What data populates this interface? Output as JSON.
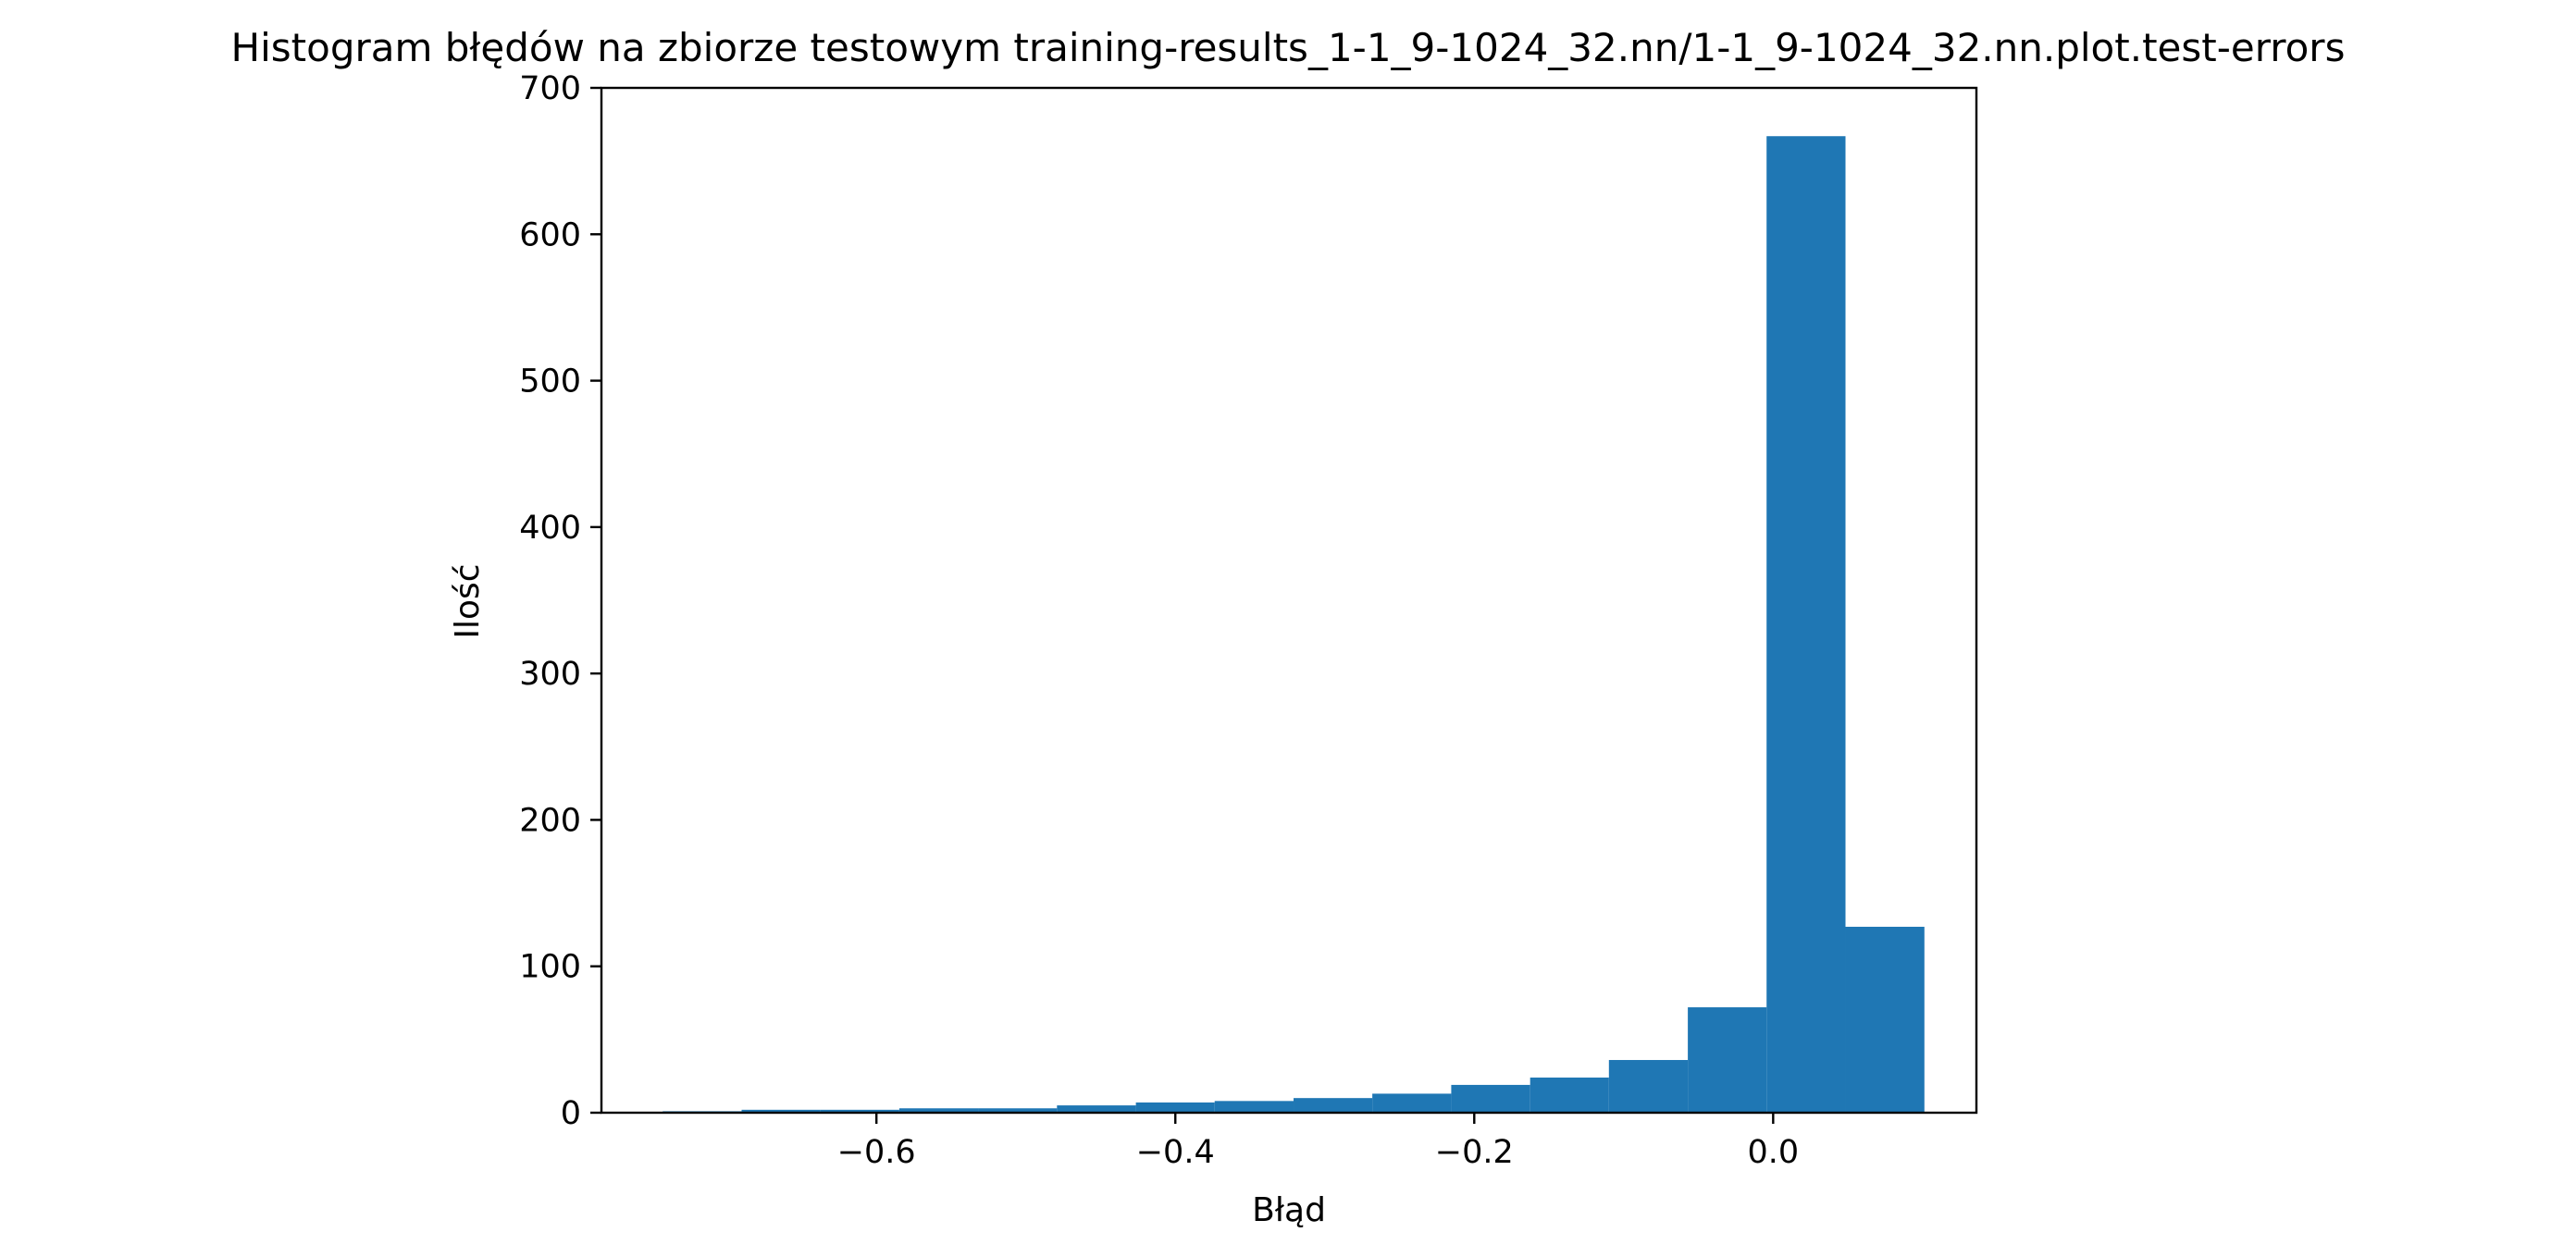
{
  "chart_data": {
    "type": "bar",
    "title": "Histogram błędów na zbiorze testowym training-results_1-1_9-1024_32.nn/1-1_9-1024_32.nn.plot.test-errors",
    "xlabel": "Błąd",
    "ylabel": "Ilość",
    "xlim": [
      -0.784,
      0.136
    ],
    "ylim": [
      0,
      700
    ],
    "grid": false,
    "x_ticks": [
      {
        "value": -0.6,
        "label": "−0.6"
      },
      {
        "value": -0.4,
        "label": "−0.4"
      },
      {
        "value": -0.2,
        "label": "−0.2"
      },
      {
        "value": 0.0,
        "label": "0.0"
      }
    ],
    "y_ticks": [
      {
        "value": 0,
        "label": "0"
      },
      {
        "value": 100,
        "label": "100"
      },
      {
        "value": 200,
        "label": "200"
      },
      {
        "value": 300,
        "label": "300"
      },
      {
        "value": 400,
        "label": "400"
      },
      {
        "value": 500,
        "label": "500"
      },
      {
        "value": 600,
        "label": "600"
      },
      {
        "value": 700,
        "label": "700"
      }
    ],
    "bin_edges": [
      -0.743,
      -0.6902,
      -0.6375,
      -0.5847,
      -0.532,
      -0.4792,
      -0.4264,
      -0.3737,
      -0.3209,
      -0.2682,
      -0.2154,
      -0.1626,
      -0.1099,
      -0.0571,
      -0.0044,
      0.0484,
      0.1012
    ],
    "values": [
      1,
      2,
      2,
      3,
      3,
      5,
      7,
      8,
      10,
      13,
      19,
      24,
      36,
      72,
      667,
      127
    ],
    "bar_color": "#1f77b4"
  }
}
